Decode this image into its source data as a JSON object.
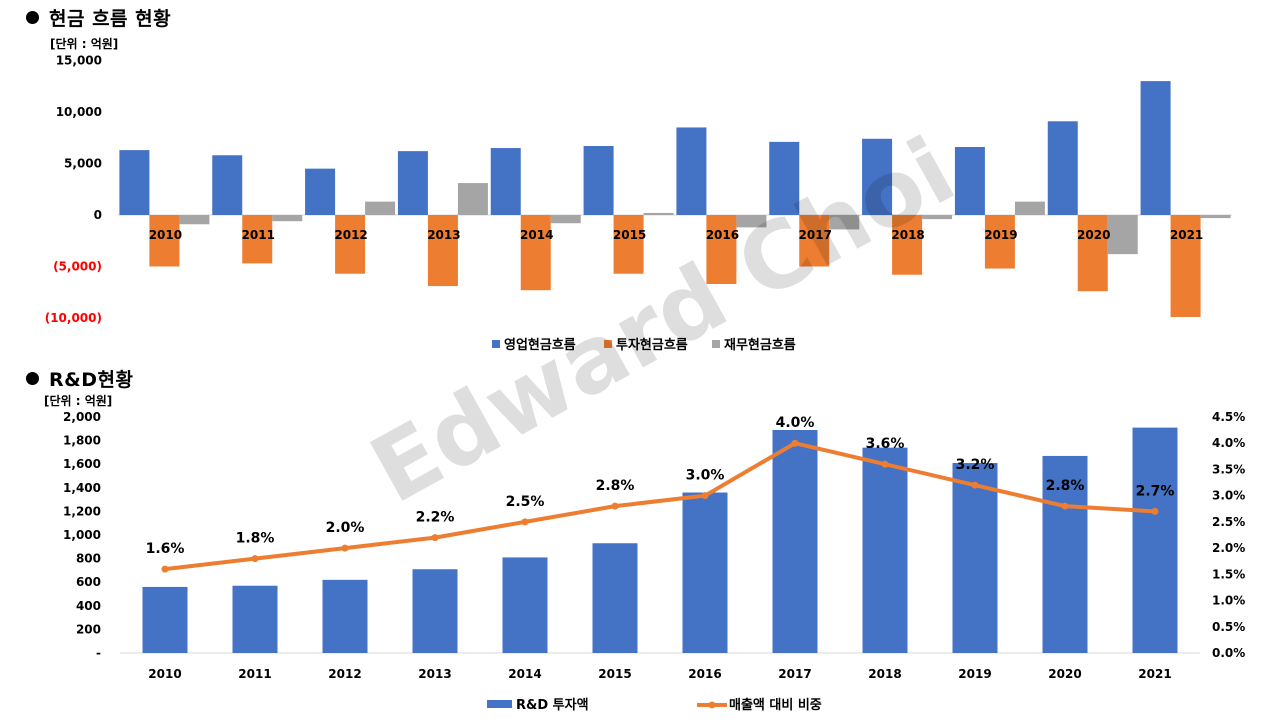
{
  "sections": {
    "cash_flow": {
      "title": "현금 흐름 현황",
      "unit": "[단위 : 억원]"
    },
    "rnd": {
      "title": "R&D현황",
      "unit": "[단위 : 억원]"
    }
  },
  "watermark": "Edward Choi",
  "colors": {
    "blue": "#4472c4",
    "orange": "#ed7d31",
    "gray": "#a5a5a5",
    "negative_tick": "#ff0000"
  },
  "chart_data": [
    {
      "type": "bar",
      "title": "현금 흐름 현황",
      "unit": "[단위 : 억원]",
      "categories": [
        "2010",
        "2011",
        "2012",
        "2013",
        "2014",
        "2015",
        "2016",
        "2017",
        "2018",
        "2019",
        "2020",
        "2021"
      ],
      "series": [
        {
          "name": "영업현금흐름",
          "color": "#4472c4",
          "values": [
            6300,
            5800,
            4500,
            6200,
            6500,
            6700,
            8500,
            7100,
            7400,
            6600,
            9100,
            13000
          ]
        },
        {
          "name": "투자현금흐름",
          "color": "#ed7d31",
          "values": [
            -5000,
            -4700,
            -5700,
            -6900,
            -7300,
            -5700,
            -6700,
            -5000,
            -5800,
            -5200,
            -7400,
            -9900
          ]
        },
        {
          "name": "재무현금흐름",
          "color": "#a5a5a5",
          "values": [
            -900,
            -600,
            1300,
            3100,
            -800,
            200,
            -1200,
            -1400,
            -400,
            1300,
            -3800,
            -300
          ]
        }
      ],
      "ylim": [
        -10000,
        15000
      ],
      "yticks": [
        "15,000",
        "10,000",
        "5,000",
        "0",
        "(5,000)",
        "(10,000)"
      ],
      "ytick_values": [
        15000,
        10000,
        5000,
        0,
        -5000,
        -10000
      ],
      "legend": "bottom",
      "grid": false
    },
    {
      "type": "bar",
      "title": "R&D현황",
      "unit": "[단위 : 억원]",
      "categories": [
        "2010",
        "2011",
        "2012",
        "2013",
        "2014",
        "2015",
        "2016",
        "2017",
        "2018",
        "2019",
        "2020",
        "2021"
      ],
      "series": [
        {
          "name": "R&D  투자액",
          "color": "#4472c4",
          "type": "bar",
          "axis": "left",
          "values": [
            560,
            570,
            620,
            710,
            810,
            930,
            1360,
            1890,
            1740,
            1610,
            1670,
            1910
          ]
        },
        {
          "name": "매출액 대비 비중",
          "color": "#ed7d31",
          "type": "line",
          "axis": "right",
          "values": [
            1.6,
            1.8,
            2.0,
            2.2,
            2.5,
            2.8,
            3.0,
            4.0,
            3.6,
            3.2,
            2.8,
            2.7
          ],
          "labels": [
            "1.6%",
            "1.8%",
            "2.0%",
            "2.2%",
            "2.5%",
            "2.8%",
            "3.0%",
            "4.0%",
            "3.6%",
            "3.2%",
            "2.8%",
            "2.7%"
          ]
        }
      ],
      "ylim": [
        0,
        2000
      ],
      "yticks": [
        "2,000",
        "1,800",
        "1,600",
        "1,400",
        "1,200",
        "1,000",
        "800",
        "600",
        "400",
        "200",
        "-"
      ],
      "ytick_values": [
        2000,
        1800,
        1600,
        1400,
        1200,
        1000,
        800,
        600,
        400,
        200,
        0
      ],
      "y2lim": [
        0,
        4.5
      ],
      "y2ticks": [
        "4.5%",
        "4.0%",
        "3.5%",
        "3.0%",
        "2.5%",
        "2.0%",
        "1.5%",
        "1.0%",
        "0.5%",
        "0.0%"
      ],
      "y2tick_values": [
        4.5,
        4.0,
        3.5,
        3.0,
        2.5,
        2.0,
        1.5,
        1.0,
        0.5,
        0.0
      ],
      "legend": "bottom",
      "grid": false
    }
  ]
}
